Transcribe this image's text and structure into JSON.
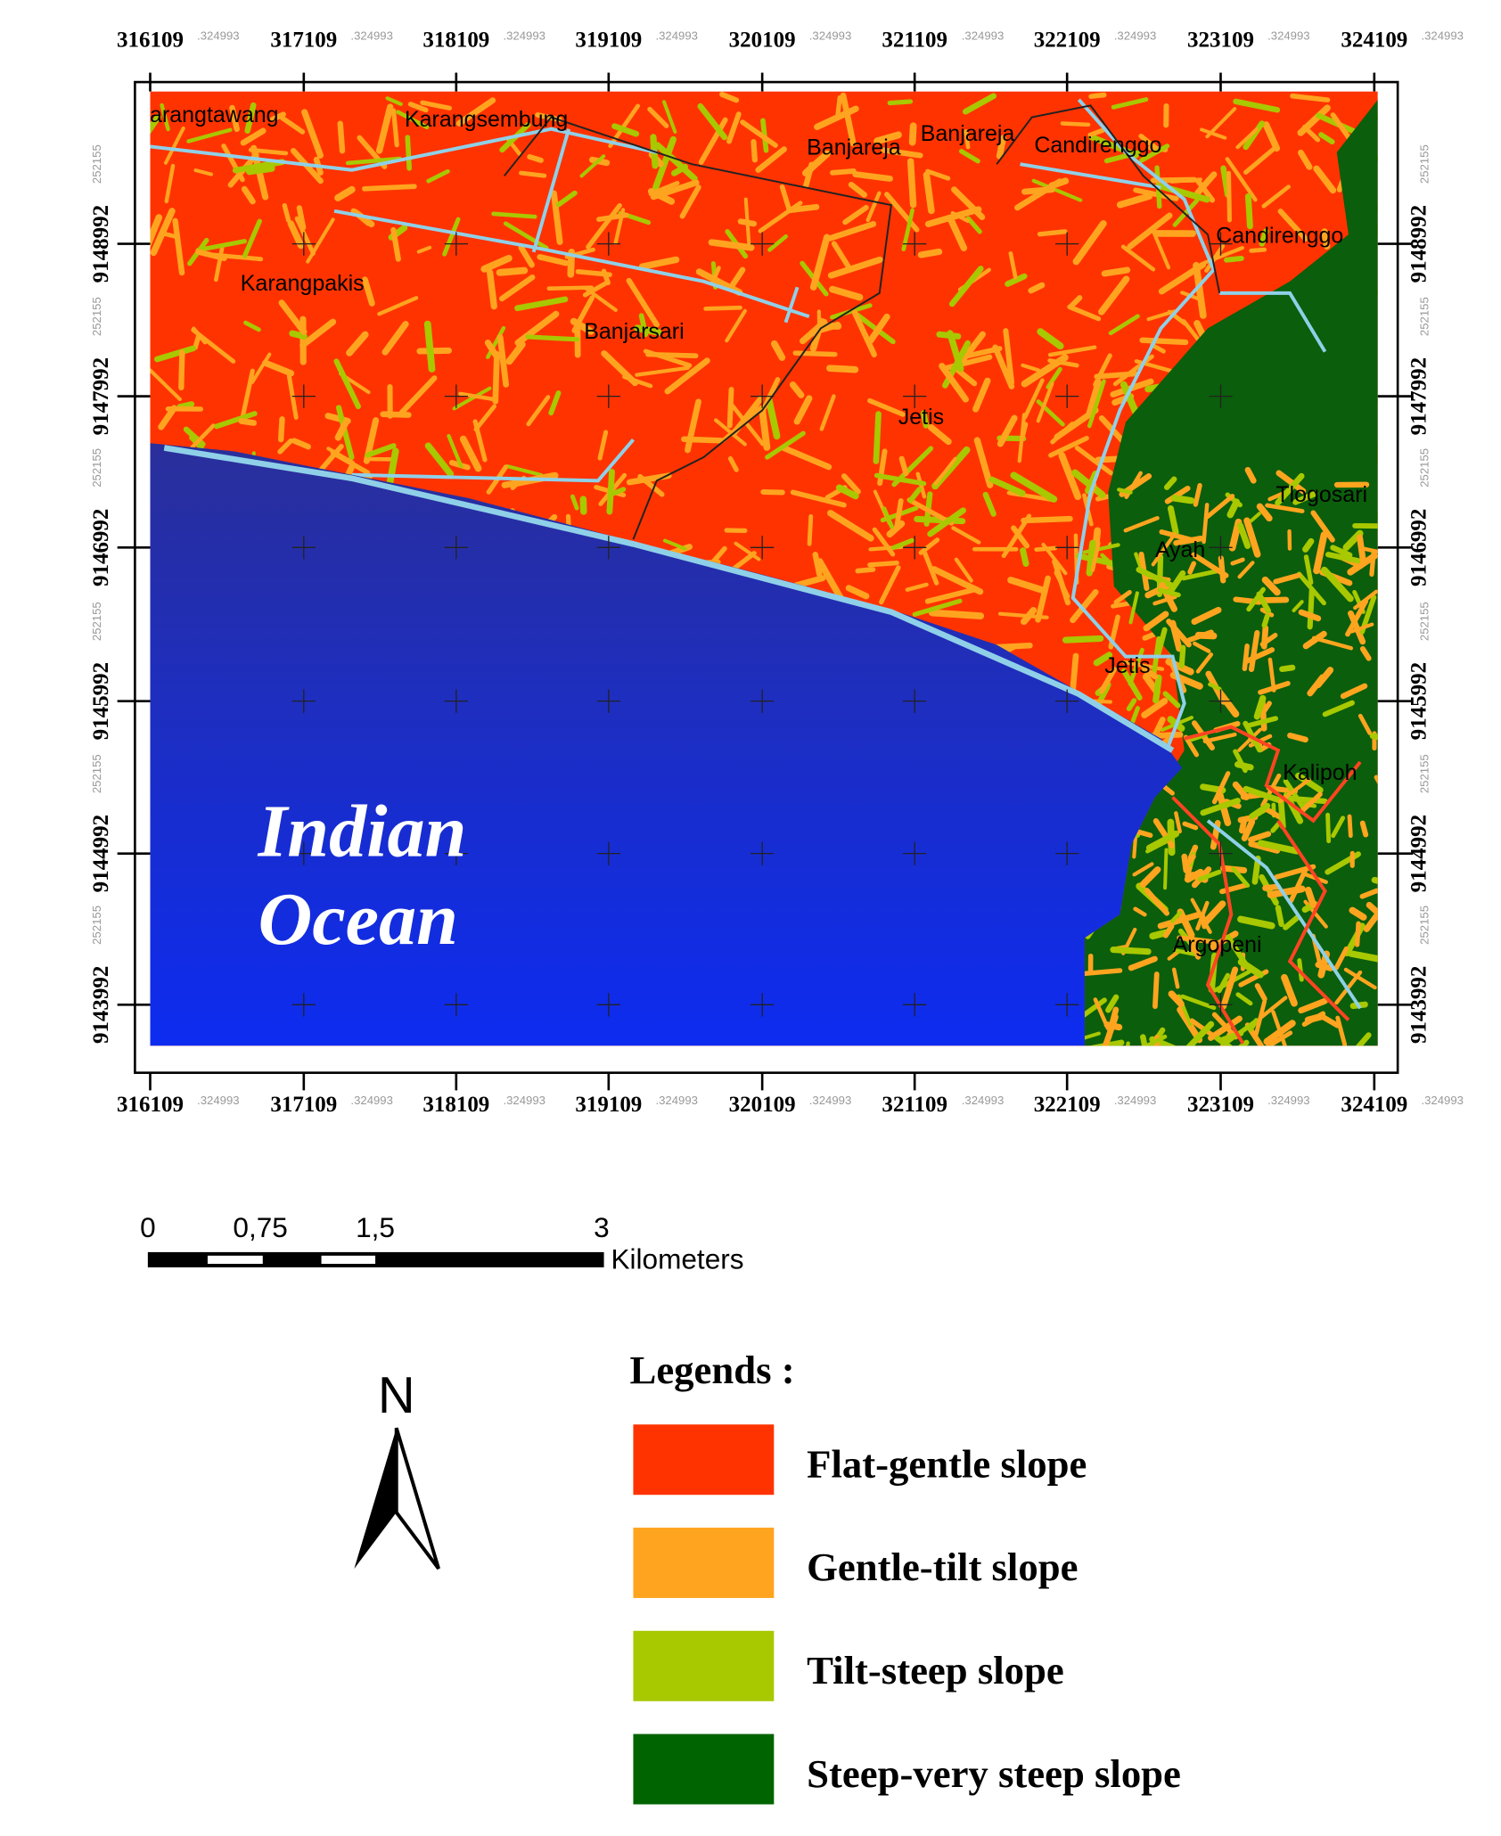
{
  "map": {
    "x_labels": [
      "316109",
      "317109",
      "318109",
      "319109",
      "320109",
      "321109",
      "322109",
      "323109",
      "324109"
    ],
    "x_suffix": ".324993",
    "y_labels": [
      "9148992",
      "9147992",
      "9146992",
      "9145992",
      "9144992",
      "9143992"
    ],
    "y_suffix": "252155",
    "places": [
      "Karangtawang",
      "Karangsembung",
      "Banjareja",
      "Banjareja",
      "Candirenggo",
      "Candirenggo",
      "Karangpakis",
      "Banjarsari",
      "Jetis",
      "Tlogosari",
      "Ayah",
      "Jetis",
      "Kalipoh",
      "Argopeni"
    ],
    "ocean_label": [
      "Indian",
      "Ocean"
    ],
    "scale_bar": {
      "labels": [
        "0",
        "0,75",
        "1,5",
        "3"
      ],
      "unit": "Kilometers"
    },
    "north": "N",
    "legend": {
      "title": "Legends :",
      "items": [
        {
          "label": "Flat-gentle slope",
          "color": "#ff3300"
        },
        {
          "label": "Gentle-tilt slope",
          "color": "#ffa41f"
        },
        {
          "label": "Tilt-steep slope",
          "color": "#a8c800"
        },
        {
          "label": "Steep-very steep slope",
          "color": "#006400"
        }
      ]
    }
  }
}
